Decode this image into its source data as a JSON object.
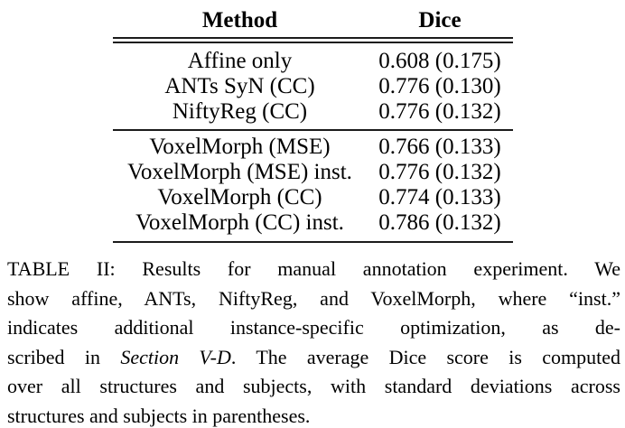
{
  "table": {
    "headers": [
      "Method",
      "Dice"
    ],
    "groups": [
      {
        "rows": [
          {
            "method": "Affine only",
            "dice": "0.608 (0.175)"
          },
          {
            "method": "ANTs SyN (CC)",
            "dice": "0.776 (0.130)"
          },
          {
            "method": "NiftyReg (CC)",
            "dice": "0.776 (0.132)"
          }
        ]
      },
      {
        "rows": [
          {
            "method": "VoxelMorph (MSE)",
            "dice": "0.766 (0.133)"
          },
          {
            "method": "VoxelMorph (MSE) inst.",
            "dice": "0.776 (0.132)"
          },
          {
            "method": "VoxelMorph (CC)",
            "dice": "0.774 (0.133)"
          },
          {
            "method": "VoxelMorph (CC) inst.",
            "dice": "0.786 (0.132)"
          }
        ]
      }
    ]
  },
  "caption": {
    "label": "TABLE II",
    "lines": [
      {
        "text": "TABLE II: Results for manual annotation experiment. We"
      },
      {
        "text": "show affine, ANTs, NiftyReg, and VoxelMorph, where “inst.”"
      },
      {
        "text": "indicates additional instance-specific optimization, as de-"
      },
      {
        "pre": "scribed in ",
        "italic": "Section V-D",
        "post": ". The average Dice score is computed"
      },
      {
        "text": "over all structures and subjects, with standard deviations across"
      },
      {
        "text": "structures and subjects in parentheses."
      }
    ]
  },
  "colors": {
    "background": "#ffffff",
    "text": "#000000",
    "rule": "#1b1b1b"
  }
}
